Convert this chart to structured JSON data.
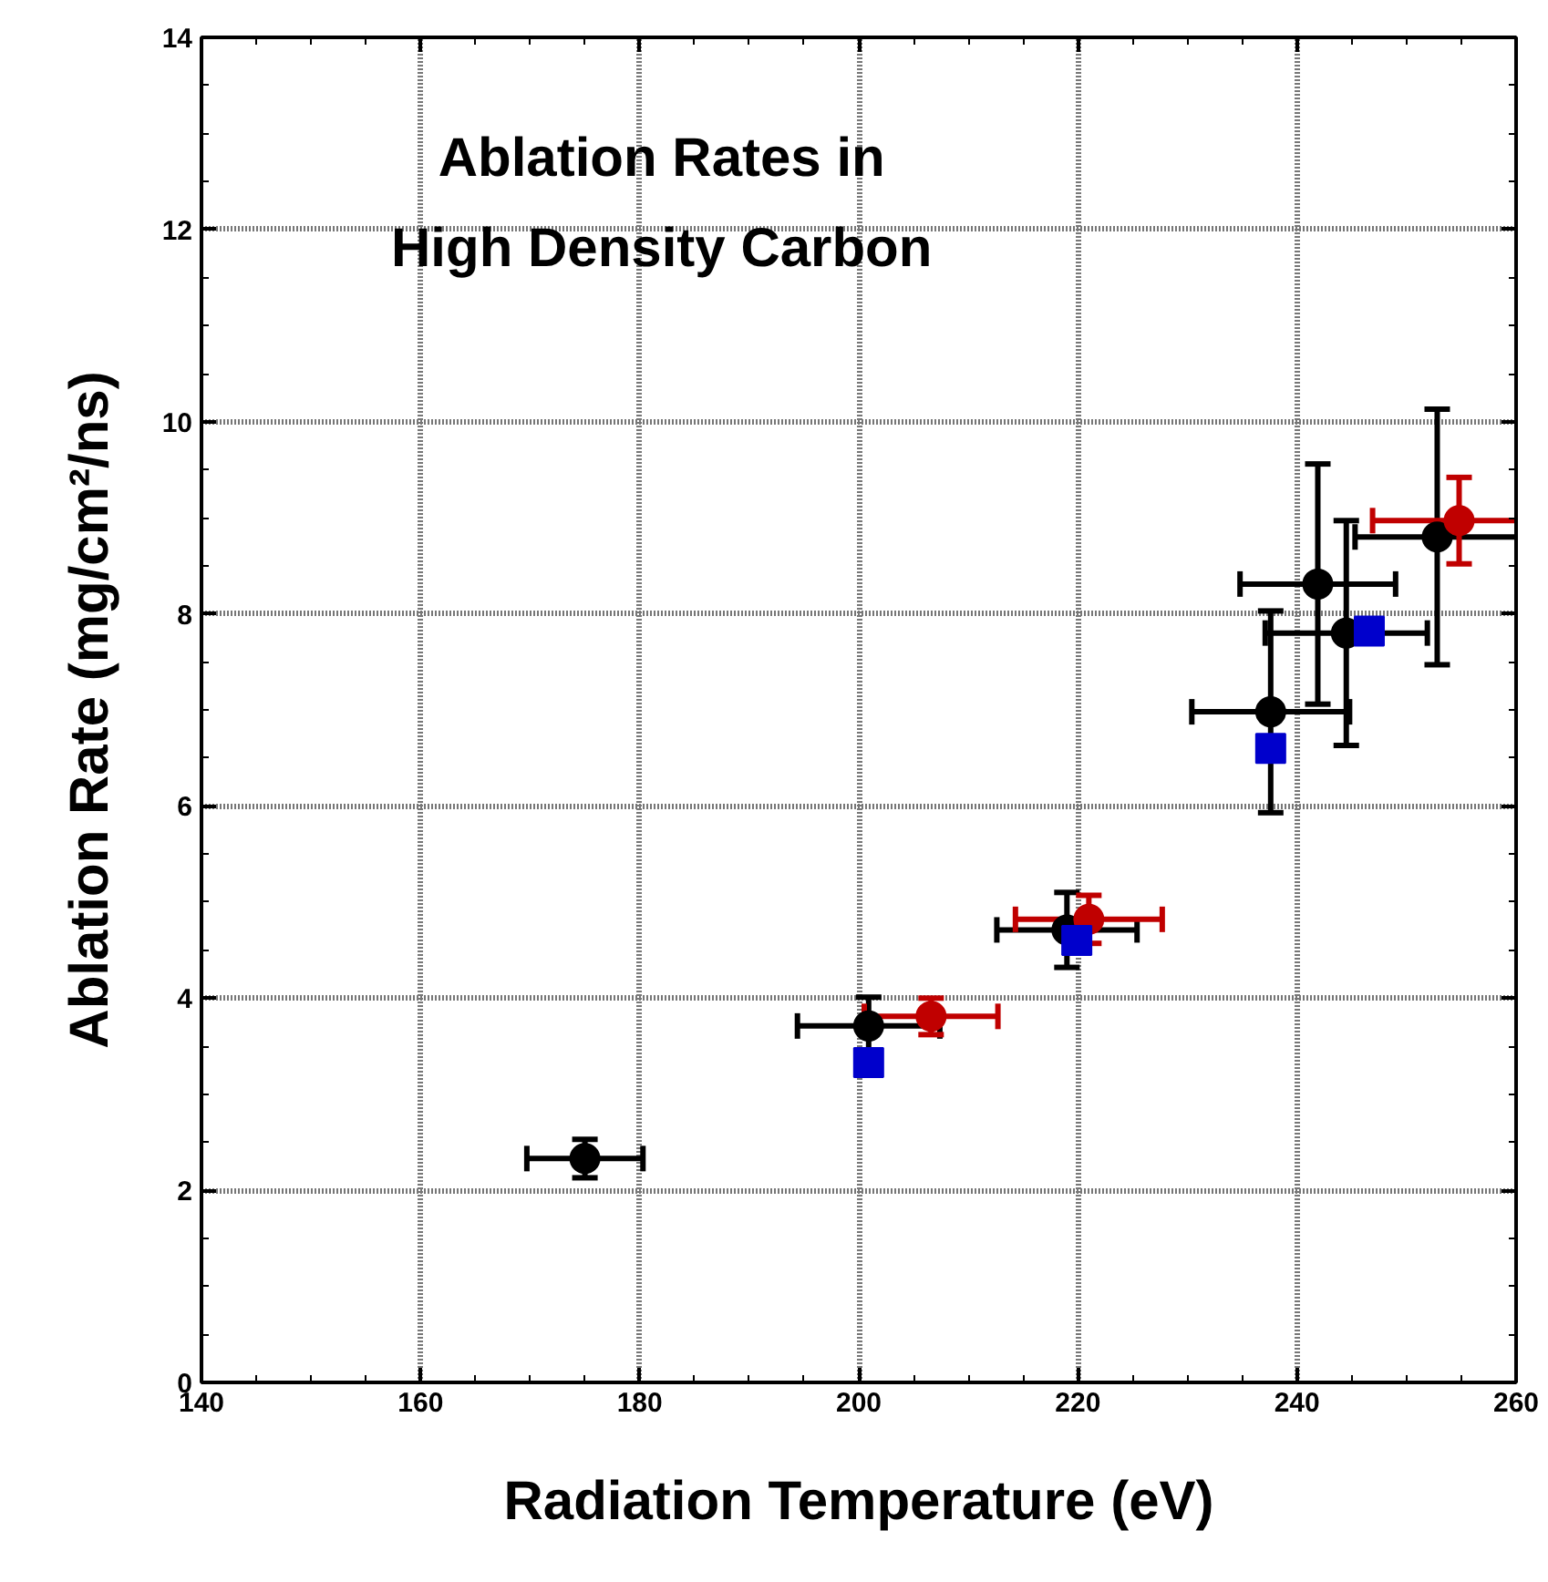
{
  "chart_data": {
    "type": "scatter",
    "title": "Ablation Rates in\nHigh Density Carbon",
    "xlabel": "Radiation Temperature (eV)",
    "ylabel": "Ablation Rate (mg/cm²/ns)",
    "xlim": [
      140,
      260
    ],
    "ylim": [
      0,
      14
    ],
    "xticks": [
      140,
      160,
      180,
      200,
      220,
      240,
      260
    ],
    "yticks": [
      0,
      2,
      4,
      6,
      8,
      10,
      12,
      14
    ],
    "grid": true,
    "series": [
      {
        "color": "#000000",
        "marker": "circle",
        "x": [
          175,
          200.9,
          219,
          237.6,
          241.9,
          244.5,
          252.8
        ],
        "values": [
          2.33,
          3.71,
          4.71,
          6.98,
          8.31,
          7.8,
          8.8
        ],
        "xerrors": [
          5.3,
          6.5,
          6.4,
          7.2,
          7.1,
          7.4,
          7.5
        ],
        "errors": [
          0.2,
          0.3,
          0.39,
          1.05,
          1.25,
          1.17,
          1.33
        ]
      },
      {
        "color": "#c00000",
        "marker": "circle",
        "x": [
          206.6,
          221,
          254.8
        ],
        "values": [
          3.81,
          4.82,
          8.97
        ],
        "xerrors": [
          6.1,
          6.7,
          7.9
        ],
        "errors": [
          0.19,
          0.25,
          0.45
        ]
      },
      {
        "color": "#0000cc",
        "marker": "square",
        "x": [
          200.9,
          219.9,
          237.6,
          246.6
        ],
        "values": [
          3.33,
          4.6,
          6.6,
          7.82
        ]
      }
    ]
  }
}
